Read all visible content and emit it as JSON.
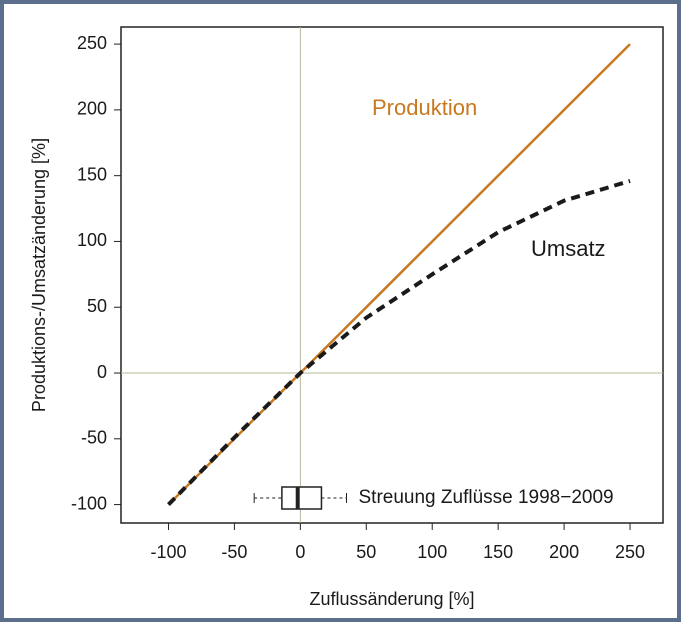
{
  "chart_data": {
    "type": "line",
    "x_label": "Zuflussänderung [%]",
    "y_label": "Produktions-/Umsatzänderung [%]",
    "x": [
      -100,
      -50,
      0,
      50,
      100,
      150,
      200,
      250
    ],
    "series": [
      {
        "name": "Produktion",
        "color": "#c8781e",
        "style": "solid",
        "values": [
          -100,
          -50,
          0,
          50,
          100,
          150,
          200,
          250
        ]
      },
      {
        "name": "Umsatz",
        "color": "#1a1a1a",
        "style": "dashed",
        "values": [
          -100,
          -49,
          0,
          42,
          75,
          107,
          131,
          146
        ]
      }
    ],
    "xlim": [
      -136,
      275
    ],
    "ylim": [
      -114,
      263
    ],
    "xticks": [
      -100,
      -50,
      0,
      50,
      100,
      150,
      200,
      250
    ],
    "yticks": [
      -100,
      -50,
      0,
      50,
      100,
      150,
      200,
      250
    ],
    "reference_lines": {
      "x": 0,
      "y": 0,
      "color": "#b8b89a"
    },
    "boxplot": {
      "label": "Streuung Zuflüsse 1998−2009",
      "y": -95,
      "whisker_low": -35,
      "q1": -14,
      "median": -2,
      "q3": 16,
      "whisker_high": 35
    }
  }
}
